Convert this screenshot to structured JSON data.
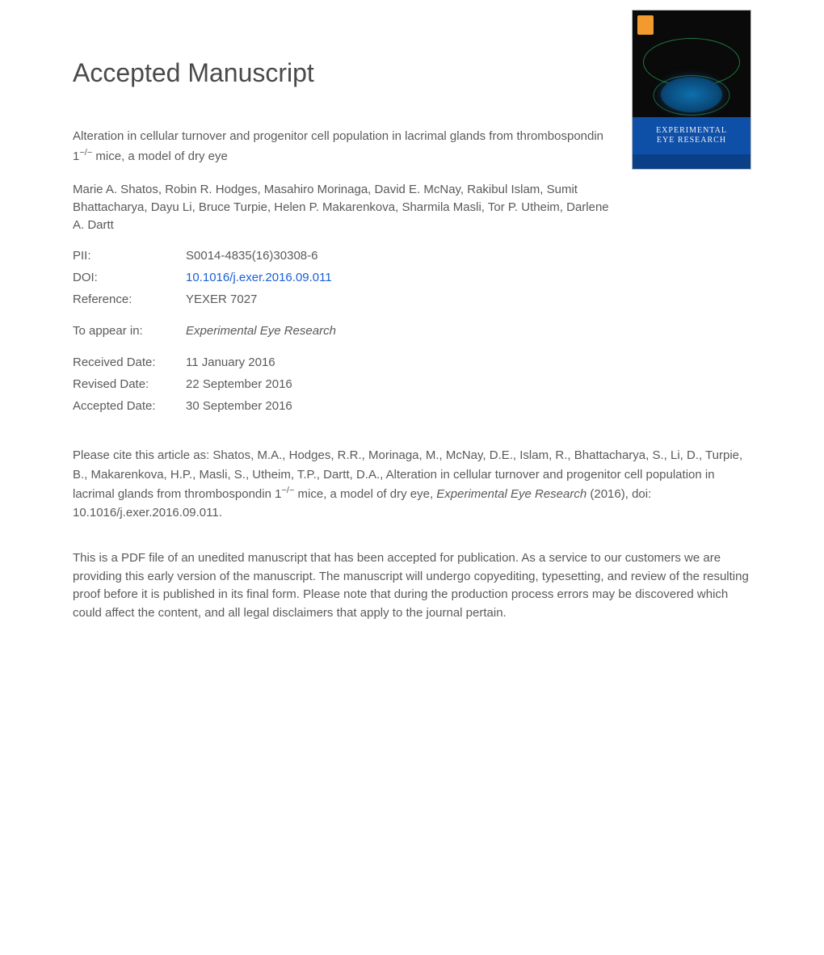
{
  "heading": "Accepted Manuscript",
  "article_title_pre": "Alteration in cellular turnover and progenitor cell population in lacrimal glands from thrombospondin 1",
  "article_title_sup": "−/−",
  "article_title_post": " mice, a model of dry eye",
  "authors": "Marie A. Shatos, Robin R. Hodges, Masahiro Morinaga, David E. McNay, Rakibul Islam, Sumit Bhattacharya, Dayu Li, Bruce Turpie, Helen P. Makarenkova, Sharmila Masli, Tor P. Utheim, Darlene A. Dartt",
  "meta": {
    "pii_label": "PII:",
    "pii_value": "S0014-4835(16)30308-6",
    "doi_label": "DOI:",
    "doi_value": "10.1016/j.exer.2016.09.011",
    "ref_label": "Reference:",
    "ref_value": "YEXER 7027",
    "appear_label": "To appear in:",
    "appear_value": "Experimental Eye Research",
    "received_label": "Received Date:",
    "received_value": "11 January 2016",
    "revised_label": "Revised Date:",
    "revised_value": "22 September 2016",
    "accepted_label": "Accepted Date:",
    "accepted_value": "30 September 2016"
  },
  "cite_pre": "Please cite this article as: Shatos, M.A., Hodges, R.R., Morinaga, M., McNay, D.E., Islam, R., Bhattacharya, S., Li, D., Turpie, B., Makarenkova, H.P., Masli, S., Utheim, T.P., Dartt, D.A., Alteration in cellular turnover and progenitor cell population in lacrimal glands from thrombospondin 1",
  "cite_sup": "−/−",
  "cite_post_1": " mice, a model of dry eye, ",
  "cite_journal": "Experimental Eye Research",
  "cite_post_2": " (2016), doi: 10.1016/j.exer.2016.09.011.",
  "disclaimer": "This is a PDF file of an unedited manuscript that has been accepted for publication. As a service to our customers we are providing this early version of the manuscript. The manuscript will undergo copyediting, typesetting, and review of the resulting proof before it is published in its final form. Please note that during the production process errors may be discovered which could affect the content, and all legal disclaimers that apply to the journal pertain.",
  "cover": {
    "journal_line1": "EXPERIMENTAL",
    "journal_line2": "EYE RESEARCH"
  },
  "colors": {
    "text": "#5a5a5a",
    "link": "#1a5fd6",
    "background": "#ffffff",
    "cover_band": "#0e4fa8"
  }
}
